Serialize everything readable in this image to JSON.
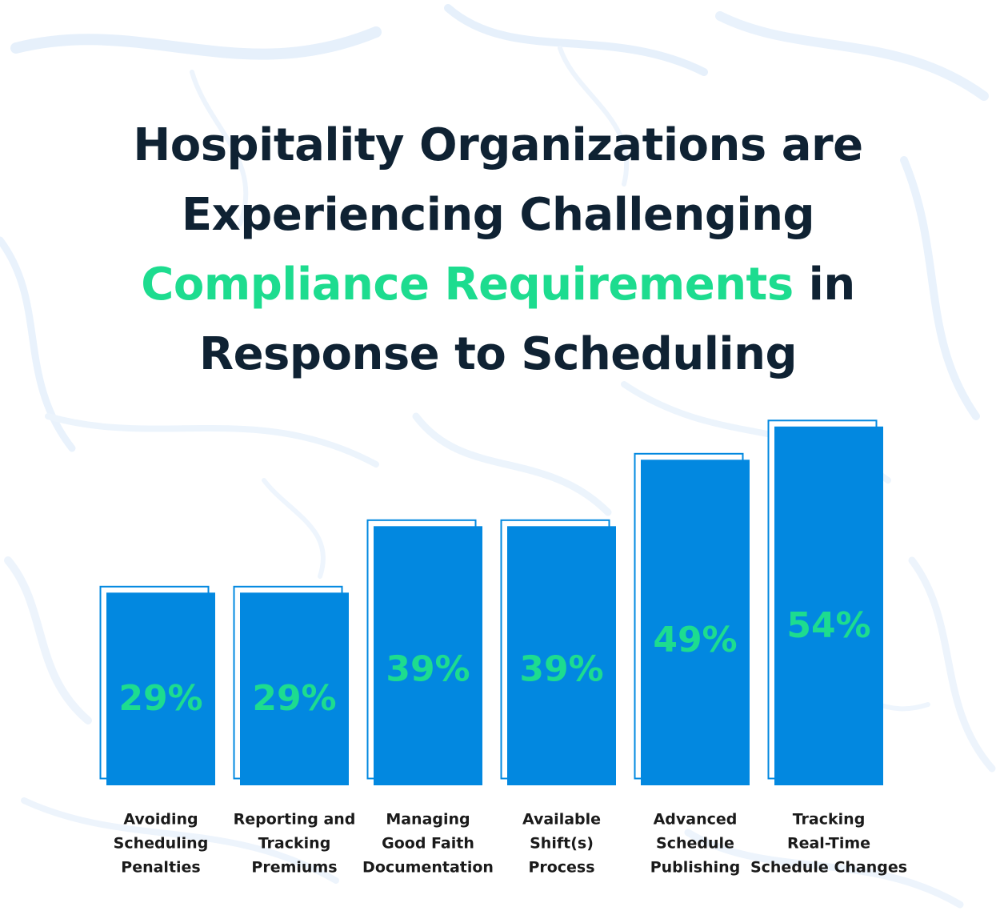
{
  "title": {
    "line1": "Hospitality Organizations are",
    "line2": "Experiencing Challenging",
    "line3_accent": "Compliance Requirements",
    "line3_rest": " in",
    "line4": "Response to Scheduling"
  },
  "colors": {
    "bar": "#0288e0",
    "value_label": "#1ddc8f",
    "title_text": "#0f2233",
    "title_accent": "#1ddc8f",
    "background_art": "#e4effa"
  },
  "chart_data": {
    "type": "bar",
    "categories": [
      [
        "Avoiding",
        "Scheduling",
        "Penalties"
      ],
      [
        "Reporting and",
        "Tracking",
        "Premiums"
      ],
      [
        "Managing",
        "Good Faith",
        "Documentation"
      ],
      [
        "Available",
        "Shift(s)",
        "Process"
      ],
      [
        "Advanced",
        "Schedule",
        "Publishing"
      ],
      [
        "Tracking",
        "Real-Time",
        "Schedule Changes"
      ]
    ],
    "values": [
      29,
      29,
      39,
      39,
      49,
      54
    ],
    "value_labels": [
      "29%",
      "29%",
      "39%",
      "39%",
      "49%",
      "54%"
    ],
    "grid": false,
    "legend": "none"
  }
}
